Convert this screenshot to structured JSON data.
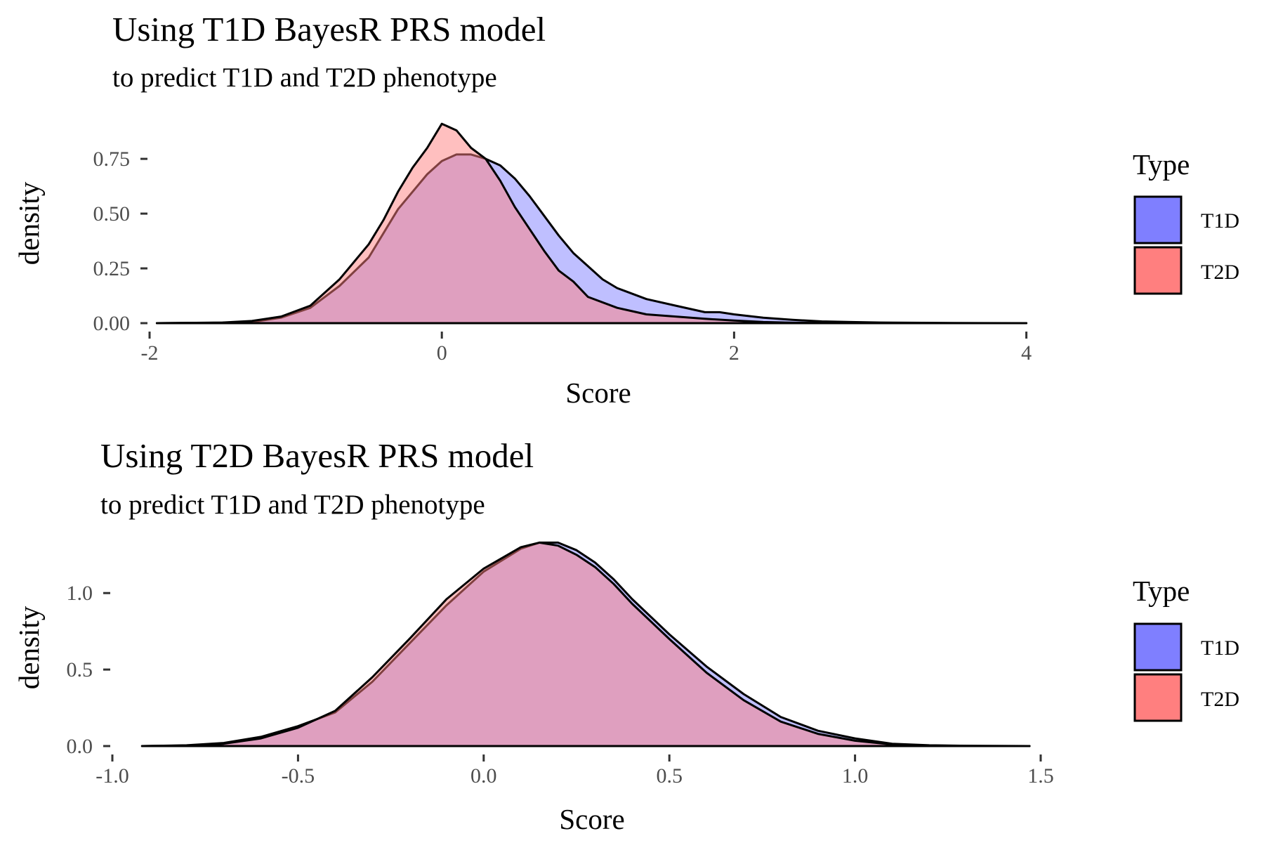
{
  "chart_data": [
    {
      "type": "area",
      "chart_kind": "density",
      "title": "Using T1D BayesR PRS model",
      "subtitle": "to predict T1D and T2D phenotype",
      "xlabel": "Score",
      "ylabel": "density",
      "xlim": [
        -2,
        4.05
      ],
      "ylim": [
        0,
        0.93
      ],
      "xticks": [
        -2,
        0,
        2,
        4
      ],
      "xtick_labels": [
        "-2",
        "0",
        "2",
        "4"
      ],
      "yticks": [
        0,
        0.25,
        0.5,
        0.75
      ],
      "ytick_labels": [
        "0.00",
        "0.25",
        "0.50",
        "0.75"
      ],
      "grid": false,
      "legend": {
        "title": "Type",
        "position": "right",
        "entries": [
          "T1D",
          "T2D"
        ]
      },
      "series": [
        {
          "name": "T1D",
          "color": "#7f7fff",
          "x": [
            -1.95,
            -1.5,
            -1.3,
            -1.1,
            -0.9,
            -0.7,
            -0.5,
            -0.3,
            -0.1,
            0.0,
            0.1,
            0.2,
            0.3,
            0.4,
            0.5,
            0.6,
            0.7,
            0.8,
            0.9,
            1.0,
            1.1,
            1.2,
            1.4,
            1.6,
            1.8,
            1.9,
            2.0,
            2.2,
            2.4,
            2.6,
            2.8,
            3.0,
            3.5,
            4.0
          ],
          "y": [
            0.0,
            0.002,
            0.005,
            0.025,
            0.07,
            0.17,
            0.3,
            0.52,
            0.68,
            0.74,
            0.77,
            0.77,
            0.75,
            0.72,
            0.66,
            0.58,
            0.49,
            0.4,
            0.32,
            0.26,
            0.2,
            0.16,
            0.11,
            0.08,
            0.05,
            0.05,
            0.04,
            0.025,
            0.015,
            0.008,
            0.005,
            0.003,
            0.001,
            0.0
          ]
        },
        {
          "name": "T2D",
          "color": "#ff7f7f",
          "x": [
            -1.95,
            -1.5,
            -1.3,
            -1.1,
            -0.9,
            -0.7,
            -0.5,
            -0.4,
            -0.3,
            -0.2,
            -0.1,
            0.0,
            0.1,
            0.2,
            0.3,
            0.4,
            0.5,
            0.6,
            0.7,
            0.8,
            0.9,
            1.0,
            1.2,
            1.4,
            1.6,
            1.8,
            2.0,
            2.2,
            2.4,
            2.6,
            3.0,
            3.5,
            4.0
          ],
          "y": [
            0.0,
            0.003,
            0.01,
            0.03,
            0.08,
            0.2,
            0.36,
            0.47,
            0.6,
            0.71,
            0.8,
            0.91,
            0.88,
            0.8,
            0.75,
            0.65,
            0.53,
            0.43,
            0.33,
            0.24,
            0.19,
            0.12,
            0.07,
            0.04,
            0.03,
            0.02,
            0.012,
            0.005,
            0.002,
            0.001,
            0.0,
            0.0,
            0.0
          ]
        }
      ]
    },
    {
      "type": "area",
      "chart_kind": "density",
      "title": "Using T2D BayesR PRS model",
      "subtitle": "to predict T1D and T2D phenotype",
      "xlabel": "Score",
      "ylabel": "density",
      "xlim": [
        -1.0,
        1.5
      ],
      "ylim": [
        0,
        1.35
      ],
      "xticks": [
        -1.0,
        -0.5,
        0.0,
        0.5,
        1.0,
        1.5
      ],
      "xtick_labels": [
        "-1.0",
        "-0.5",
        "0.0",
        "0.5",
        "1.0",
        "1.5"
      ],
      "yticks": [
        0,
        0.5,
        1.0
      ],
      "ytick_labels": [
        "0.0",
        "0.5",
        "1.0"
      ],
      "grid": false,
      "legend": {
        "title": "Type",
        "position": "right",
        "entries": [
          "T1D",
          "T2D"
        ]
      },
      "series": [
        {
          "name": "T1D",
          "color": "#7f7fff",
          "x": [
            -0.92,
            -0.8,
            -0.7,
            -0.6,
            -0.5,
            -0.4,
            -0.3,
            -0.2,
            -0.1,
            0.0,
            0.1,
            0.15,
            0.2,
            0.25,
            0.3,
            0.35,
            0.4,
            0.5,
            0.6,
            0.7,
            0.8,
            0.9,
            1.0,
            1.1,
            1.2,
            1.3,
            1.47
          ],
          "y": [
            0.0,
            0.005,
            0.02,
            0.06,
            0.13,
            0.22,
            0.42,
            0.67,
            0.92,
            1.14,
            1.29,
            1.33,
            1.33,
            1.28,
            1.2,
            1.09,
            0.96,
            0.73,
            0.52,
            0.34,
            0.19,
            0.1,
            0.05,
            0.015,
            0.005,
            0.002,
            0.0
          ]
        },
        {
          "name": "T2D",
          "color": "#ff7f7f",
          "x": [
            -0.92,
            -0.8,
            -0.7,
            -0.6,
            -0.5,
            -0.4,
            -0.3,
            -0.2,
            -0.1,
            0.0,
            0.1,
            0.15,
            0.2,
            0.25,
            0.3,
            0.35,
            0.4,
            0.5,
            0.6,
            0.7,
            0.8,
            0.9,
            1.0,
            1.1,
            1.2,
            1.3,
            1.47
          ],
          "y": [
            0.0,
            0.003,
            0.015,
            0.05,
            0.12,
            0.23,
            0.45,
            0.7,
            0.96,
            1.16,
            1.3,
            1.33,
            1.31,
            1.25,
            1.17,
            1.06,
            0.93,
            0.7,
            0.48,
            0.3,
            0.16,
            0.08,
            0.035,
            0.01,
            0.003,
            0.001,
            0.0
          ]
        }
      ]
    }
  ]
}
